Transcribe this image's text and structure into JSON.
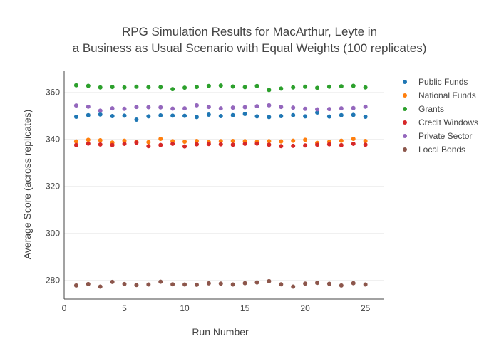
{
  "chart_data": {
    "type": "scatter",
    "title_lines": [
      "RPG Simulation Results for MacArthur, Leyte in",
      "a Business as Usual Scenario with Equal Weights (100 replicates)"
    ],
    "xlabel": "Run Number",
    "ylabel": "Average Score (across replicates)",
    "xlim": [
      0,
      26.5
    ],
    "ylim": [
      272,
      369
    ],
    "xticks": [
      0,
      5,
      10,
      15,
      20,
      25
    ],
    "yticks": [
      280,
      300,
      320,
      340,
      360
    ],
    "grid": true,
    "legend_position": "top-right",
    "x": [
      1,
      2,
      3,
      4,
      5,
      6,
      7,
      8,
      9,
      10,
      11,
      12,
      13,
      14,
      15,
      16,
      17,
      18,
      19,
      20,
      21,
      22,
      23,
      24,
      25
    ],
    "series": [
      {
        "name": "Public Funds",
        "color": "#1f77b4",
        "values": [
          349.6,
          350.3,
          350.6,
          349.9,
          350.1,
          348.4,
          349.8,
          350.2,
          350.1,
          350.0,
          349.5,
          350.5,
          349.9,
          350.3,
          350.8,
          349.8,
          349.5,
          349.9,
          350.3,
          349.8,
          351.4,
          349.7,
          350.3,
          350.4,
          349.6
        ]
      },
      {
        "name": "National Funds",
        "color": "#ff7f0e",
        "values": [
          339.1,
          339.8,
          339.6,
          338.6,
          339.4,
          338.9,
          338.8,
          340.2,
          339.2,
          339.0,
          339.3,
          338.8,
          339.2,
          339.3,
          339.2,
          338.9,
          339.2,
          339.1,
          339.4,
          339.8,
          338.5,
          338.9,
          339.4,
          340.2,
          339.3
        ]
      },
      {
        "name": "Grants",
        "color": "#2ca02c",
        "values": [
          363.0,
          362.8,
          362.1,
          362.3,
          362.1,
          362.4,
          362.2,
          362.2,
          361.4,
          362.0,
          362.3,
          362.7,
          362.9,
          362.5,
          362.2,
          362.7,
          361.0,
          361.6,
          362.1,
          362.4,
          361.9,
          362.4,
          362.6,
          362.8,
          362.1
        ]
      },
      {
        "name": "Credit Windows",
        "color": "#d62728",
        "values": [
          337.6,
          338.2,
          337.8,
          337.6,
          338.1,
          338.6,
          337.1,
          337.6,
          338.1,
          337.0,
          337.9,
          338.0,
          337.9,
          337.7,
          338.1,
          338.2,
          337.7,
          337.1,
          337.2,
          337.4,
          337.7,
          337.9,
          337.5,
          338.1,
          337.7
        ]
      },
      {
        "name": "Private Sector",
        "color": "#9467bd",
        "values": [
          354.4,
          353.9,
          352.2,
          353.2,
          353.0,
          353.8,
          353.7,
          353.6,
          353.1,
          353.2,
          354.5,
          353.8,
          353.2,
          353.5,
          353.7,
          354.1,
          354.5,
          353.8,
          353.5,
          353.0,
          352.8,
          352.9,
          353.2,
          353.3,
          353.9
        ]
      },
      {
        "name": "Local Bonds",
        "color": "#8c564b",
        "values": [
          277.8,
          278.4,
          277.3,
          279.3,
          278.4,
          278.0,
          278.2,
          279.4,
          278.3,
          278.2,
          278.1,
          278.7,
          278.6,
          278.2,
          278.8,
          279.1,
          279.6,
          278.3,
          277.3,
          278.6,
          278.9,
          278.5,
          277.8,
          278.8,
          278.2
        ]
      }
    ]
  }
}
